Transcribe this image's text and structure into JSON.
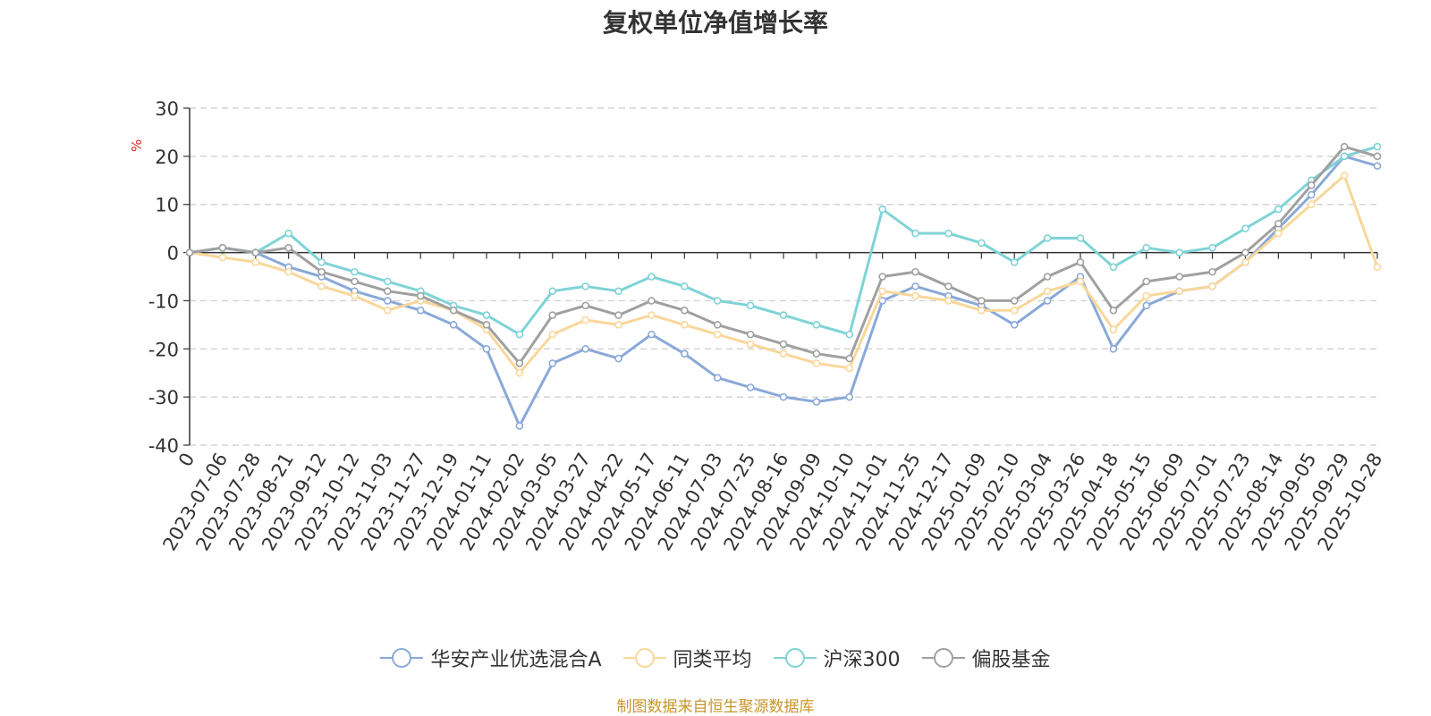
{
  "chart_data": {
    "type": "line",
    "title": "复权单位净值增长率",
    "ylabel": "%",
    "ylim": [
      -40,
      30
    ],
    "yticks": [
      30,
      20,
      10,
      0,
      -10,
      -20,
      -30,
      -40
    ],
    "grid": true,
    "legend_position": "bottom",
    "x_tick_labels": [
      "0",
      "2023-07-06",
      "2023-07-28",
      "2023-08-21",
      "2023-09-12",
      "2023-10-12",
      "2023-11-03",
      "2023-11-27",
      "2023-12-19",
      "2024-01-11",
      "2024-02-02",
      "2024-03-05",
      "2024-03-27",
      "2024-04-22",
      "2024-05-17",
      "2024-06-11",
      "2024-07-03",
      "2024-07-25",
      "2024-08-16",
      "2024-09-09",
      "2024-10-10",
      "2024-11-01",
      "2024-11-25",
      "2024-12-17",
      "2025-01-09",
      "2025-02-10",
      "2025-03-04",
      "2025-03-26",
      "2025-04-18",
      "2025-05-15",
      "2025-06-09",
      "2025-07-01",
      "2025-07-23",
      "2025-08-14",
      "2025-09-05",
      "2025-09-29",
      "2025-10-28"
    ],
    "series": [
      {
        "name": "华安产业优选混合A",
        "color": "#8aa9d8",
        "values": [
          0,
          1,
          0,
          -3,
          -5,
          -8,
          -10,
          -12,
          -15,
          -20,
          -36,
          -23,
          -20,
          -22,
          -17,
          -21,
          -26,
          -28,
          -30,
          -31,
          -30,
          -10,
          -7,
          -9,
          -11,
          -15,
          -10,
          -5,
          -20,
          -11,
          -8,
          -7,
          -2,
          5,
          12,
          20,
          18
        ]
      },
      {
        "name": "同类平均",
        "color": "#f9d79a",
        "values": [
          0,
          -1,
          -2,
          -4,
          -7,
          -9,
          -12,
          -10,
          -12,
          -16,
          -25,
          -17,
          -14,
          -15,
          -13,
          -15,
          -17,
          -19,
          -21,
          -23,
          -24,
          -8,
          -9,
          -10,
          -12,
          -12,
          -8,
          -6,
          -16,
          -9,
          -8,
          -7,
          -2,
          4,
          10,
          16,
          -3
        ]
      },
      {
        "name": "沪深300",
        "color": "#7fd3d6",
        "values": [
          0,
          1,
          0,
          4,
          -2,
          -4,
          -6,
          -8,
          -11,
          -13,
          -17,
          -8,
          -7,
          -8,
          -5,
          -7,
          -10,
          -11,
          -13,
          -15,
          -17,
          9,
          4,
          4,
          2,
          -2,
          3,
          3,
          -3,
          1,
          0,
          1,
          5,
          9,
          15,
          20,
          22
        ]
      },
      {
        "name": "偏股基金",
        "color": "#a0a0a0",
        "values": [
          0,
          1,
          0,
          1,
          -4,
          -6,
          -8,
          -9,
          -12,
          -15,
          -23,
          -13,
          -11,
          -13,
          -10,
          -12,
          -15,
          -17,
          -19,
          -21,
          -22,
          -5,
          -4,
          -7,
          -10,
          -10,
          -5,
          -2,
          -12,
          -6,
          -5,
          -4,
          0,
          6,
          14,
          22,
          20
        ]
      }
    ]
  },
  "source_note": "制图数据来自恒生聚源数据库"
}
